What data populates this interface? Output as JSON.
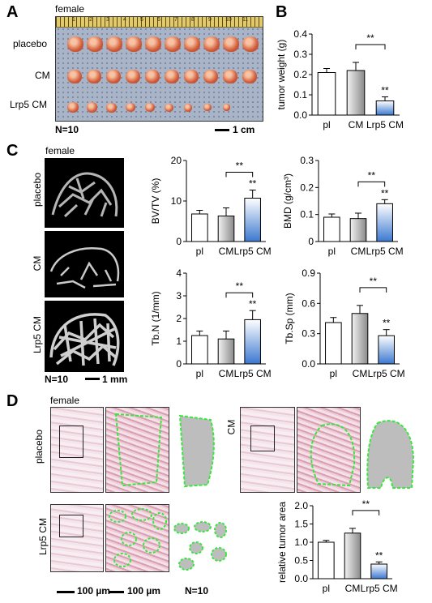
{
  "panels": {
    "A": "A",
    "B": "B",
    "C": "C",
    "D": "D"
  },
  "panelA": {
    "sex": "female",
    "rows": [
      "placebo",
      "CM",
      "Lrp5 CM"
    ],
    "n": "N=10",
    "scale": "1 cm",
    "ruler_ticks": [
      "1",
      "2",
      "3",
      "4",
      "5",
      "6",
      "7",
      "8",
      "9",
      "10",
      "11"
    ]
  },
  "panelC": {
    "sex": "female",
    "rows": [
      "placebo",
      "CM",
      "Lrp5 CM"
    ],
    "n": "N=10",
    "scale": "1 mm"
  },
  "panelD": {
    "sex": "female",
    "row1": [
      "placebo",
      "CM"
    ],
    "row2": "Lrp5 CM",
    "scale1": "100 µm",
    "scale2": "100 µm",
    "n": "N=10"
  },
  "chart_data": [
    {
      "type": "bar",
      "id": "B",
      "title": "",
      "xlabel": "",
      "ylabel": "tumor weight (g)",
      "categories": [
        "pl",
        "CM",
        "Lrp5 CM"
      ],
      "values": [
        0.21,
        0.22,
        0.07
      ],
      "errors": [
        0.02,
        0.04,
        0.02
      ],
      "ylim": [
        0,
        0.4
      ],
      "yticks": [
        "0.0",
        "0.1",
        "0.2",
        "0.3",
        "0.4"
      ],
      "bracket": {
        "from": 1,
        "to": 2,
        "label": "**"
      },
      "star_labels": [
        "",
        "",
        "**"
      ]
    },
    {
      "type": "bar",
      "id": "C1",
      "ylabel": "BV/TV (%)",
      "categories": [
        "pl",
        "CM",
        "Lrp5 CM"
      ],
      "values": [
        6.8,
        6.3,
        10.7
      ],
      "errors": [
        0.9,
        2.0,
        2.0
      ],
      "ylim": [
        0,
        20
      ],
      "yticks": [
        "0",
        "10",
        "20"
      ],
      "bracket": {
        "from": 1,
        "to": 2,
        "label": "**"
      },
      "star_labels": [
        "",
        "",
        "**"
      ]
    },
    {
      "type": "bar",
      "id": "C2",
      "ylabel": "BMD (g/cm³)",
      "categories": [
        "pl",
        "CM",
        "Lrp5 CM"
      ],
      "values": [
        0.09,
        0.085,
        0.14
      ],
      "errors": [
        0.012,
        0.02,
        0.015
      ],
      "ylim": [
        0,
        0.3
      ],
      "yticks": [
        "0",
        "0.1",
        "0.2",
        "0.3"
      ],
      "bracket": {
        "from": 1,
        "to": 2,
        "label": "**"
      },
      "star_labels": [
        "",
        "",
        "**"
      ]
    },
    {
      "type": "bar",
      "id": "C3",
      "ylabel": "Tb.N (1/mm)",
      "categories": [
        "pl",
        "CM",
        "Lrp5 CM"
      ],
      "values": [
        1.25,
        1.1,
        1.95
      ],
      "errors": [
        0.2,
        0.35,
        0.4
      ],
      "ylim": [
        0,
        4
      ],
      "yticks": [
        "0",
        "1",
        "2",
        "3",
        "4"
      ],
      "bracket": {
        "from": 1,
        "to": 2,
        "label": "**"
      },
      "star_labels": [
        "",
        "",
        "**"
      ]
    },
    {
      "type": "bar",
      "id": "C4",
      "ylabel": "Tb.Sp (mm)",
      "categories": [
        "pl",
        "CM",
        "Lrp5 CM"
      ],
      "values": [
        0.41,
        0.5,
        0.28
      ],
      "errors": [
        0.05,
        0.08,
        0.06
      ],
      "ylim": [
        0,
        0.9
      ],
      "yticks": [
        "0.0",
        "0.3",
        "0.6",
        "0.9"
      ],
      "bracket": {
        "from": 1,
        "to": 2,
        "label": "**"
      },
      "star_labels": [
        "",
        "",
        "**"
      ]
    },
    {
      "type": "bar",
      "id": "D",
      "ylabel": "relative tumor area",
      "categories": [
        "pl",
        "CM",
        "Lrp5 CM"
      ],
      "values": [
        1.0,
        1.25,
        0.4
      ],
      "errors": [
        0.05,
        0.13,
        0.06
      ],
      "ylim": [
        0,
        2
      ],
      "yticks": [
        "0.0",
        "0.5",
        "1.0",
        "1.5",
        "2.0"
      ],
      "bracket": {
        "from": 1,
        "to": 2,
        "label": "**"
      },
      "star_labels": [
        "",
        "",
        "**"
      ]
    }
  ]
}
